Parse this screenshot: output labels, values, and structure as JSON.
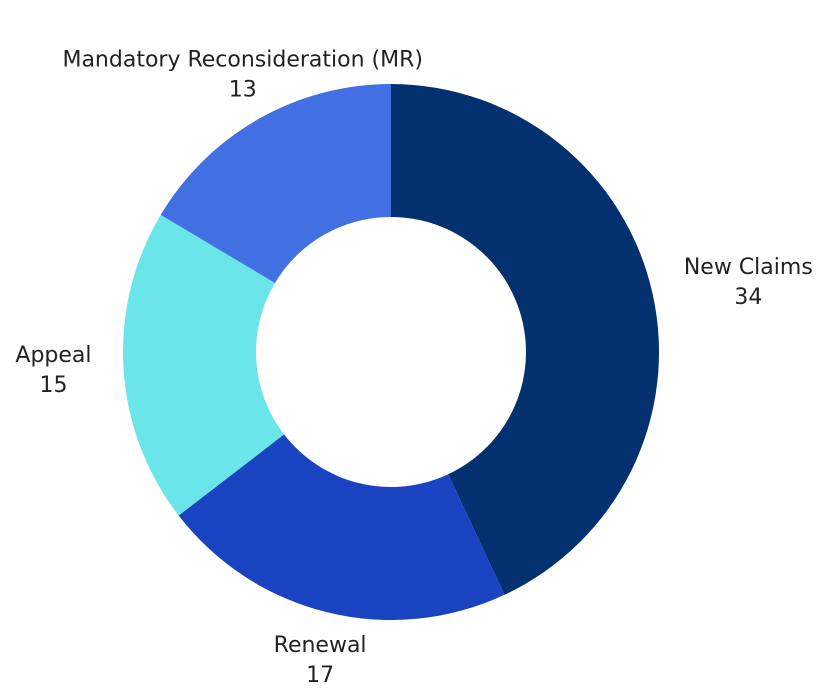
{
  "chart_data": {
    "type": "donut",
    "categories": [
      "New Claims",
      "Renewal",
      "Appeal",
      "Mandatory Reconsideration (MR)"
    ],
    "values": [
      34,
      17,
      15,
      13
    ],
    "colors": [
      "#03306f",
      "#1a43c2",
      "#6ae6ea",
      "#4270e2"
    ]
  }
}
